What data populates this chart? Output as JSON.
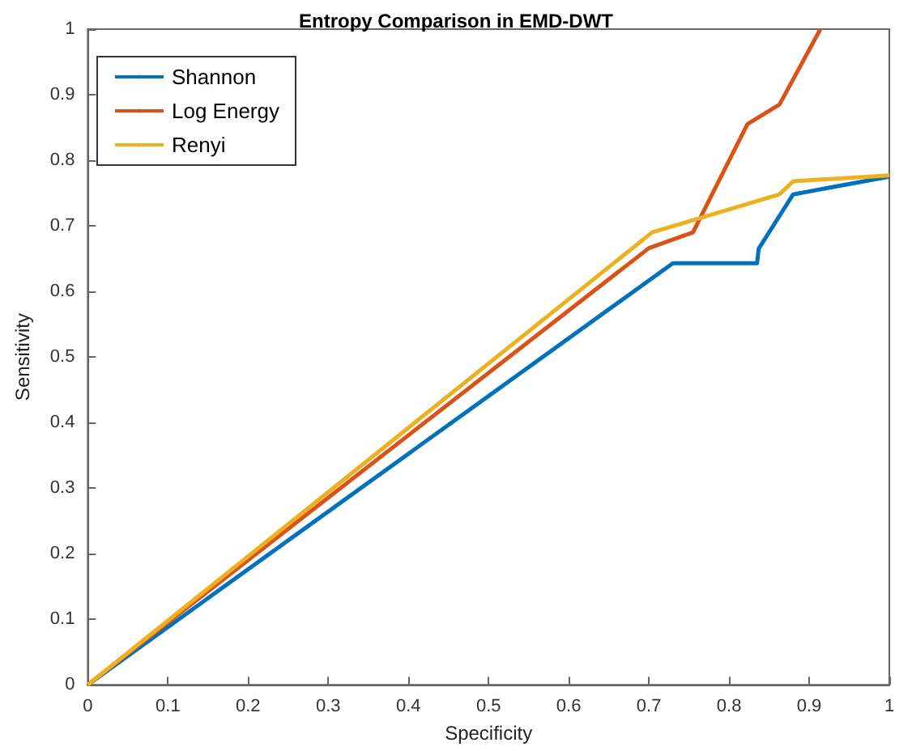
{
  "chart_data": {
    "type": "line",
    "title": "Entropy Comparison in EMD-DWT",
    "xlabel": "Specificity",
    "ylabel": "Sensitivity",
    "series": [
      {
        "name": "Shannon",
        "color": "#0072bd",
        "x": [
          0,
          0.73,
          0.835,
          0.837,
          0.88,
          1
        ],
        "values": [
          0,
          0.643,
          0.643,
          0.665,
          0.748,
          0.775
        ]
      },
      {
        "name": "Log Energy",
        "color": "#d95319",
        "x": [
          0,
          0.7,
          0.755,
          0.823,
          0.863,
          0.914
        ],
        "values": [
          0,
          0.666,
          0.69,
          0.855,
          0.885,
          1
        ]
      },
      {
        "name": "Renyi",
        "color": "#edb120",
        "x": [
          0,
          0.704,
          0.863,
          0.88,
          1
        ],
        "values": [
          0,
          0.69,
          0.748,
          0.768,
          0.777
        ]
      }
    ],
    "xlim": [
      0,
      1
    ],
    "ylim": [
      0,
      1
    ],
    "xticks": [
      0,
      0.1,
      0.2,
      0.3,
      0.4,
      0.5,
      0.6,
      0.7,
      0.8,
      0.9,
      1
    ],
    "yticks": [
      0,
      0.1,
      0.2,
      0.3,
      0.4,
      0.5,
      0.6,
      0.7,
      0.8,
      0.9,
      1
    ],
    "legend": "top left",
    "marker": "none",
    "line_style": "solid"
  }
}
